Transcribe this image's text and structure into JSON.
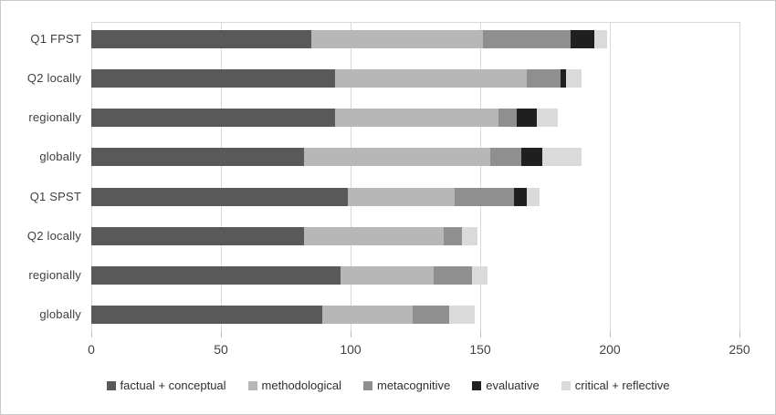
{
  "figure": {
    "background": "#ffffff",
    "border_color": "#c9c9c9",
    "gridline_color": "#d9d9d9",
    "tick_color": "#bdbdbd",
    "label_color": "#3f3f3f"
  },
  "chart_data": {
    "type": "bar",
    "orientation": "horizontal",
    "stacked": true,
    "title": "",
    "xlabel": "",
    "ylabel": "",
    "grid": true,
    "legend_position": "bottom",
    "categories": [
      "Q1 FPST",
      "Q2 locally",
      "regionally",
      "globally",
      "Q1 SPST",
      "Q2 locally",
      "regionally",
      "globally"
    ],
    "series": [
      {
        "name": "factual + conceptual",
        "color": "#595959",
        "values": [
          85,
          94,
          94,
          82,
          99,
          82,
          96,
          89
        ]
      },
      {
        "name": "methodological",
        "color": "#b7b7b7",
        "values": [
          66,
          74,
          63,
          72,
          41,
          54,
          36,
          35
        ]
      },
      {
        "name": "metacognitive",
        "color": "#8f8f8f",
        "values": [
          34,
          13,
          7,
          12,
          23,
          7,
          15,
          14
        ]
      },
      {
        "name": "evaluative",
        "color": "#1f1f1f",
        "values": [
          9,
          2,
          8,
          8,
          5,
          0,
          0,
          0
        ]
      },
      {
        "name": "critical + reflective",
        "color": "#dadada",
        "values": [
          5,
          6,
          8,
          15,
          5,
          6,
          6,
          10
        ]
      }
    ],
    "x_axis": {
      "min": 0,
      "max": 250,
      "tick_interval": 50,
      "tick_labels": [
        "0",
        "50",
        "100",
        "150",
        "200",
        "250"
      ]
    }
  },
  "layout_note": "stacked horizontal bar chart, values per series per category"
}
